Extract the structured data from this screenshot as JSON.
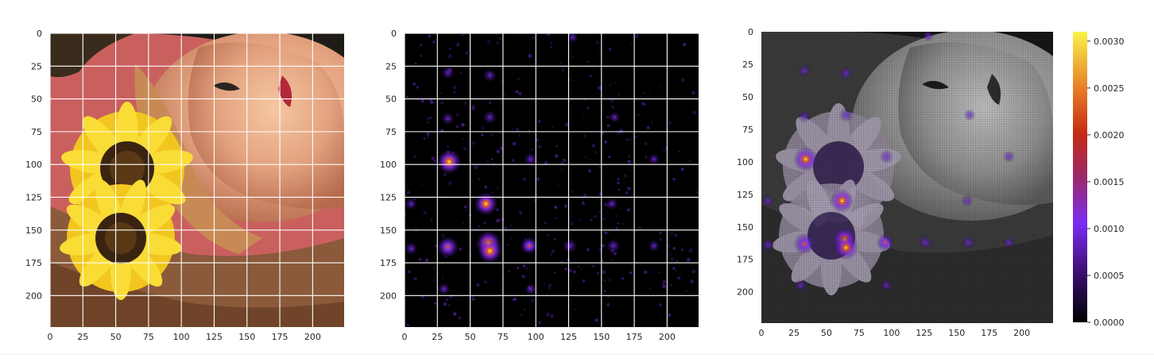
{
  "chart_data": [
    {
      "type": "heatmap",
      "panel": "input-image",
      "description_source": "photo",
      "xlim": [
        0,
        224
      ],
      "ylim": [
        224,
        0
      ],
      "xticks": [
        0,
        25,
        50,
        75,
        100,
        125,
        150,
        175,
        200
      ],
      "yticks": [
        0,
        25,
        50,
        75,
        100,
        125,
        150,
        175,
        200
      ],
      "grid": true,
      "title": "",
      "xlabel": "",
      "ylabel": ""
    },
    {
      "type": "heatmap",
      "panel": "saliency-map",
      "colormap": "plasma-like",
      "xlim": [
        0,
        224
      ],
      "ylim": [
        224,
        0
      ],
      "xticks": [
        0,
        25,
        50,
        75,
        100,
        125,
        150,
        175,
        200
      ],
      "yticks": [
        0,
        25,
        50,
        75,
        100,
        125,
        150,
        175,
        200
      ],
      "grid": true,
      "hotspots": [
        {
          "x": 34,
          "y": 98,
          "v": 0.003
        },
        {
          "x": 62,
          "y": 130,
          "v": 0.0028
        },
        {
          "x": 64,
          "y": 160,
          "v": 0.0031
        },
        {
          "x": 65,
          "y": 166,
          "v": 0.003
        },
        {
          "x": 33,
          "y": 163,
          "v": 0.0024
        },
        {
          "x": 95,
          "y": 162,
          "v": 0.0016
        },
        {
          "x": 126,
          "y": 162,
          "v": 0.0012
        },
        {
          "x": 159,
          "y": 162,
          "v": 0.001
        },
        {
          "x": 33,
          "y": 30,
          "v": 0.0008
        },
        {
          "x": 65,
          "y": 32,
          "v": 0.0009
        },
        {
          "x": 65,
          "y": 64,
          "v": 0.001
        },
        {
          "x": 33,
          "y": 65,
          "v": 0.0008
        },
        {
          "x": 96,
          "y": 96,
          "v": 0.0009
        },
        {
          "x": 5,
          "y": 164,
          "v": 0.0009
        },
        {
          "x": 5,
          "y": 130,
          "v": 0.0007
        },
        {
          "x": 158,
          "y": 130,
          "v": 0.0006
        },
        {
          "x": 190,
          "y": 162,
          "v": 0.0006
        },
        {
          "x": 30,
          "y": 195,
          "v": 0.0007
        },
        {
          "x": 96,
          "y": 195,
          "v": 0.0006
        },
        {
          "x": 160,
          "y": 64,
          "v": 0.0005
        },
        {
          "x": 190,
          "y": 96,
          "v": 0.0005
        },
        {
          "x": 128,
          "y": 3,
          "v": 0.0005
        }
      ],
      "title": "",
      "xlabel": "",
      "ylabel": ""
    },
    {
      "type": "heatmap",
      "panel": "overlay",
      "xlim": [
        0,
        224
      ],
      "ylim": [
        224,
        0
      ],
      "xticks": [
        0,
        25,
        50,
        75,
        100,
        125,
        150,
        175,
        200
      ],
      "yticks": [
        0,
        25,
        50,
        75,
        100,
        125,
        150,
        175,
        200
      ],
      "grid": false,
      "colorbar": {
        "range": [
          0.0,
          0.0031
        ],
        "ticks": [
          0.0,
          0.0005,
          0.001,
          0.0015,
          0.002,
          0.0025,
          0.003
        ],
        "tick_labels": [
          "0.0000",
          "0.0005",
          "0.0010",
          "0.0015",
          "0.0020",
          "0.0025",
          "0.0030"
        ],
        "colormap_stops": [
          "#000000",
          "#3b0f70",
          "#7b2cf5",
          "#b6221e",
          "#e55c1a",
          "#f0a63a",
          "#f8f24a"
        ]
      },
      "title": "",
      "xlabel": "",
      "ylabel": ""
    }
  ]
}
